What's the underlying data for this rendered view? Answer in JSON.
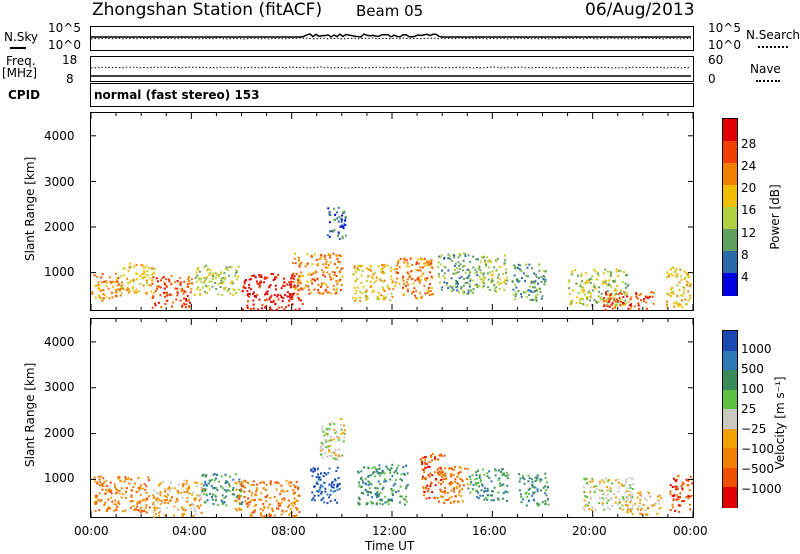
{
  "header": {
    "station": "Zhongshan Station (fitACF)",
    "beam": "Beam 05",
    "date": "06/Aug/2013"
  },
  "summary": {
    "nsky_label": "N.Sky",
    "nsky_ticks": [
      "10^5",
      "10^0"
    ],
    "nsearch_label": "N.Search",
    "nsearch_ticks": [
      "10^5",
      "10^0"
    ],
    "freq_label": "Freq.",
    "freq_unit": "[MHz]",
    "freq_ticks": [
      "18",
      "8"
    ],
    "nave_label": "Nave",
    "nave_ticks": [
      "60",
      "0"
    ],
    "cpid_label": "CPID",
    "cpid_text": "normal (fast stereo) 153"
  },
  "axes": {
    "ylabel": "Slant Range [km]",
    "yticks": [
      "4000",
      "3000",
      "2000",
      "1000"
    ],
    "xticks": [
      "00:00",
      "04:00",
      "08:00",
      "12:00",
      "16:00",
      "20:00",
      "00:00"
    ],
    "xlabel": "Time UT"
  },
  "power_colorbar": {
    "label": "Power [dB]",
    "ticks": [
      "28",
      "24",
      "20",
      "16",
      "12",
      "8",
      "4"
    ],
    "colors": [
      "#e00000",
      "#f04000",
      "#f08000",
      "#f0c000",
      "#b0d040",
      "#60a060",
      "#2a6aa8",
      "#0000e0"
    ]
  },
  "velocity_colorbar": {
    "label": "Velocity [m s⁻¹]",
    "ticks": [
      "1000",
      "500",
      "100",
      "25",
      "−25",
      "−100",
      "−500",
      "−1000"
    ],
    "colors": [
      "#1848b0",
      "#2e7ab8",
      "#3a8a5a",
      "#5cc040",
      "#c8c8c0",
      "#f0a000",
      "#f08000",
      "#f05000",
      "#e00000"
    ]
  },
  "chart_data": {
    "type": "heatmap",
    "x_range_hours": [
      0,
      24
    ],
    "y_range_km": [
      180,
      4500
    ],
    "panels": [
      {
        "name": "Power",
        "blobs": [
          {
            "t": 0.6,
            "r": 700,
            "dt": 1.2,
            "dr": 600,
            "c": 2
          },
          {
            "t": 1.8,
            "r": 900,
            "dt": 1.4,
            "dr": 700,
            "c": 3
          },
          {
            "t": 3.2,
            "r": 600,
            "dt": 1.6,
            "dr": 700,
            "c": 1
          },
          {
            "t": 5.0,
            "r": 850,
            "dt": 1.8,
            "dr": 650,
            "c": 4
          },
          {
            "t": 7.2,
            "r": 600,
            "dt": 2.4,
            "dr": 800,
            "c": 0
          },
          {
            "t": 9.0,
            "r": 1000,
            "dt": 2.0,
            "dr": 900,
            "c": 2
          },
          {
            "t": 9.8,
            "r": 2100,
            "dt": 0.8,
            "dr": 700,
            "c": 6
          },
          {
            "t": 11.2,
            "r": 800,
            "dt": 1.6,
            "dr": 800,
            "c": 3
          },
          {
            "t": 12.8,
            "r": 900,
            "dt": 1.6,
            "dr": 900,
            "c": 2
          },
          {
            "t": 14.6,
            "r": 1000,
            "dt": 1.6,
            "dr": 900,
            "c": 5
          },
          {
            "t": 16.0,
            "r": 1000,
            "dt": 1.2,
            "dr": 800,
            "c": 4
          },
          {
            "t": 17.4,
            "r": 800,
            "dt": 1.4,
            "dr": 800,
            "c": 5
          },
          {
            "t": 20.2,
            "r": 700,
            "dt": 2.4,
            "dr": 800,
            "c": 4
          },
          {
            "t": 21.4,
            "r": 400,
            "dt": 2.0,
            "dr": 400,
            "c": 1
          },
          {
            "t": 23.4,
            "r": 700,
            "dt": 1.0,
            "dr": 900,
            "c": 3
          }
        ]
      },
      {
        "name": "Velocity",
        "blobs": [
          {
            "t": 1.2,
            "r": 700,
            "dt": 2.2,
            "dr": 800,
            "c": 6
          },
          {
            "t": 3.4,
            "r": 600,
            "dt": 2.0,
            "dr": 800,
            "c": 5
          },
          {
            "t": 5.2,
            "r": 800,
            "dt": 1.6,
            "dr": 700,
            "c": 2
          },
          {
            "t": 7.0,
            "r": 600,
            "dt": 2.6,
            "dr": 800,
            "c": 6
          },
          {
            "t": 9.3,
            "r": 900,
            "dt": 1.2,
            "dr": 800,
            "c": 0
          },
          {
            "t": 9.6,
            "r": 1900,
            "dt": 1.0,
            "dr": 900,
            "c": 4
          },
          {
            "t": 11.6,
            "r": 900,
            "dt": 2.0,
            "dr": 900,
            "c": 2
          },
          {
            "t": 13.6,
            "r": 1100,
            "dt": 1.0,
            "dr": 1000,
            "c": 7
          },
          {
            "t": 14.4,
            "r": 900,
            "dt": 1.2,
            "dr": 800,
            "c": 6
          },
          {
            "t": 15.8,
            "r": 900,
            "dt": 1.6,
            "dr": 700,
            "c": 2
          },
          {
            "t": 17.6,
            "r": 800,
            "dt": 1.2,
            "dr": 700,
            "c": 2
          },
          {
            "t": 20.6,
            "r": 700,
            "dt": 2.0,
            "dr": 700,
            "c": 4
          },
          {
            "t": 22.0,
            "r": 500,
            "dt": 1.4,
            "dr": 500,
            "c": 5
          },
          {
            "t": 23.5,
            "r": 700,
            "dt": 0.9,
            "dr": 800,
            "c": 7
          }
        ]
      }
    ]
  }
}
